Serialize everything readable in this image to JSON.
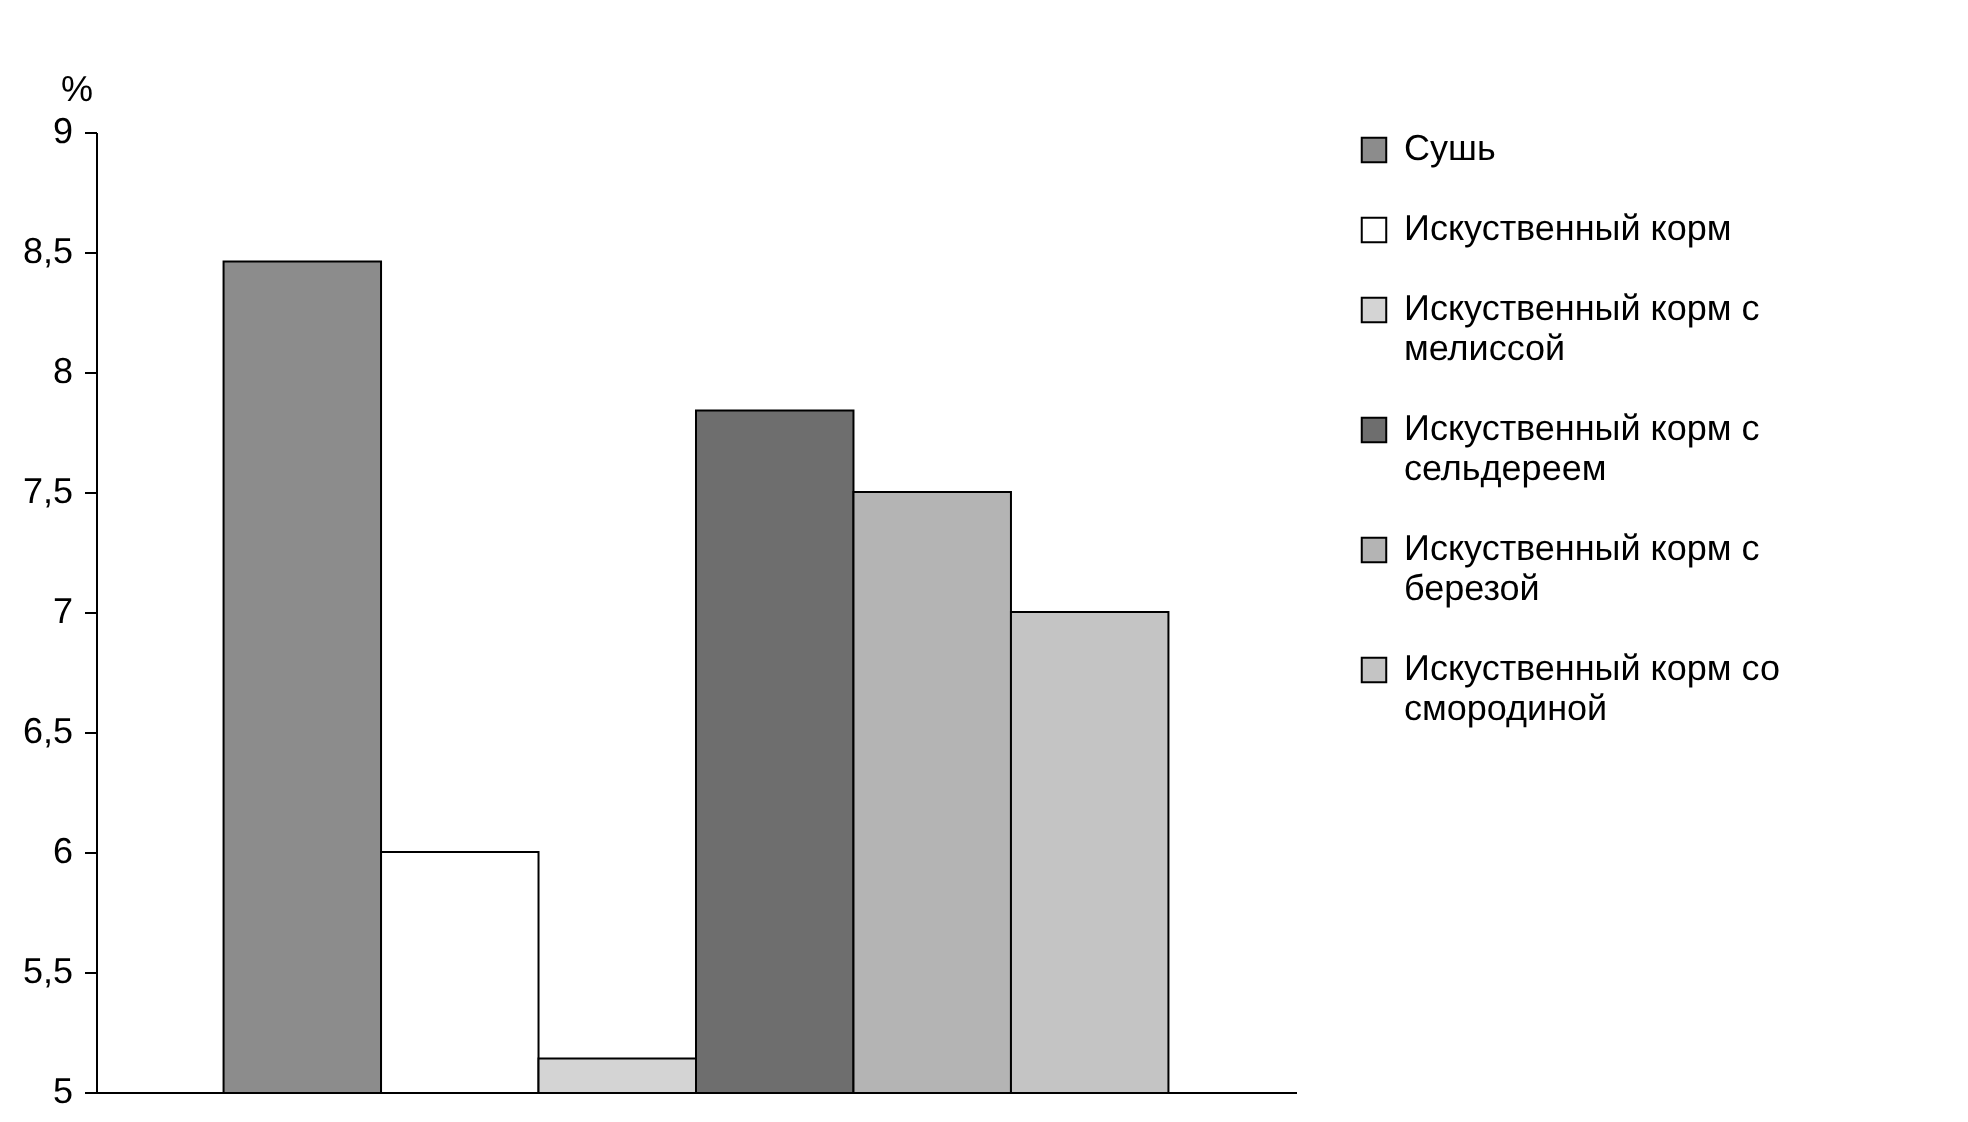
{
  "chart_data": {
    "type": "bar",
    "ylabel": "%",
    "categories": [
      null
    ],
    "series": [
      {
        "name": "Сушь",
        "color": "#8c8c8c",
        "values": [
          8.46
        ]
      },
      {
        "name": "Искуственный корм",
        "color": "#ffffff",
        "values": [
          6.0
        ]
      },
      {
        "name": "Искуственный корм с мелиссой",
        "color": "#d4d4d4",
        "values": [
          5.14
        ]
      },
      {
        "name": "Искуственный корм с сельдереем",
        "color": "#6e6e6e",
        "values": [
          7.84
        ]
      },
      {
        "name": "Искуственный корм с березой",
        "color": "#b4b4b4",
        "values": [
          7.5
        ]
      },
      {
        "name": "Искуственный корм со смородиной",
        "color": "#c4c4c4",
        "values": [
          7.0
        ]
      }
    ],
    "ylim": [
      5,
      9
    ],
    "yticks": [
      5,
      {
        "value": 5.5,
        "label": "5,5"
      },
      6,
      {
        "value": 6.5,
        "label": "6,5"
      },
      7,
      {
        "value": 7.5,
        "label": "7,5"
      },
      8,
      {
        "value": 8.5,
        "label": "8,5"
      },
      9
    ],
    "grid": false,
    "legend": "right"
  }
}
